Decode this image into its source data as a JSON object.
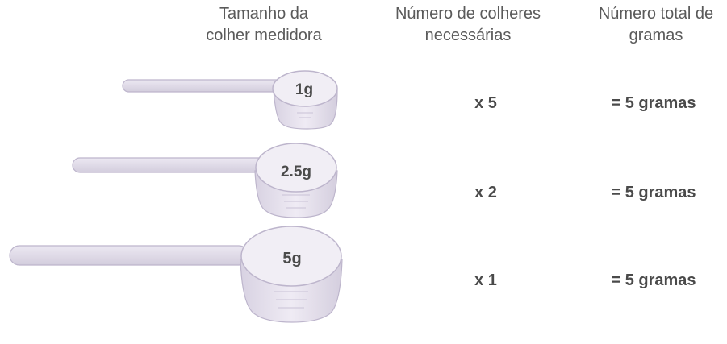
{
  "headers": {
    "size": [
      "Tamanho da",
      "colher medidora"
    ],
    "count": [
      "Número de colheres",
      "necessárias"
    ],
    "total": [
      "Número total de",
      "gramas"
    ]
  },
  "rows": [
    {
      "spoon": "1g",
      "count": "x 5",
      "total": "= 5 gramas"
    },
    {
      "spoon": "2.5g",
      "count": "x 2",
      "total": "= 5 gramas"
    },
    {
      "spoon": "5g",
      "count": "x 1",
      "total": "= 5 gramas"
    }
  ],
  "colors": {
    "spoon_fill": "#e6e1ee",
    "spoon_edge": "#b9b1c8",
    "text": "#4a4a4a"
  }
}
